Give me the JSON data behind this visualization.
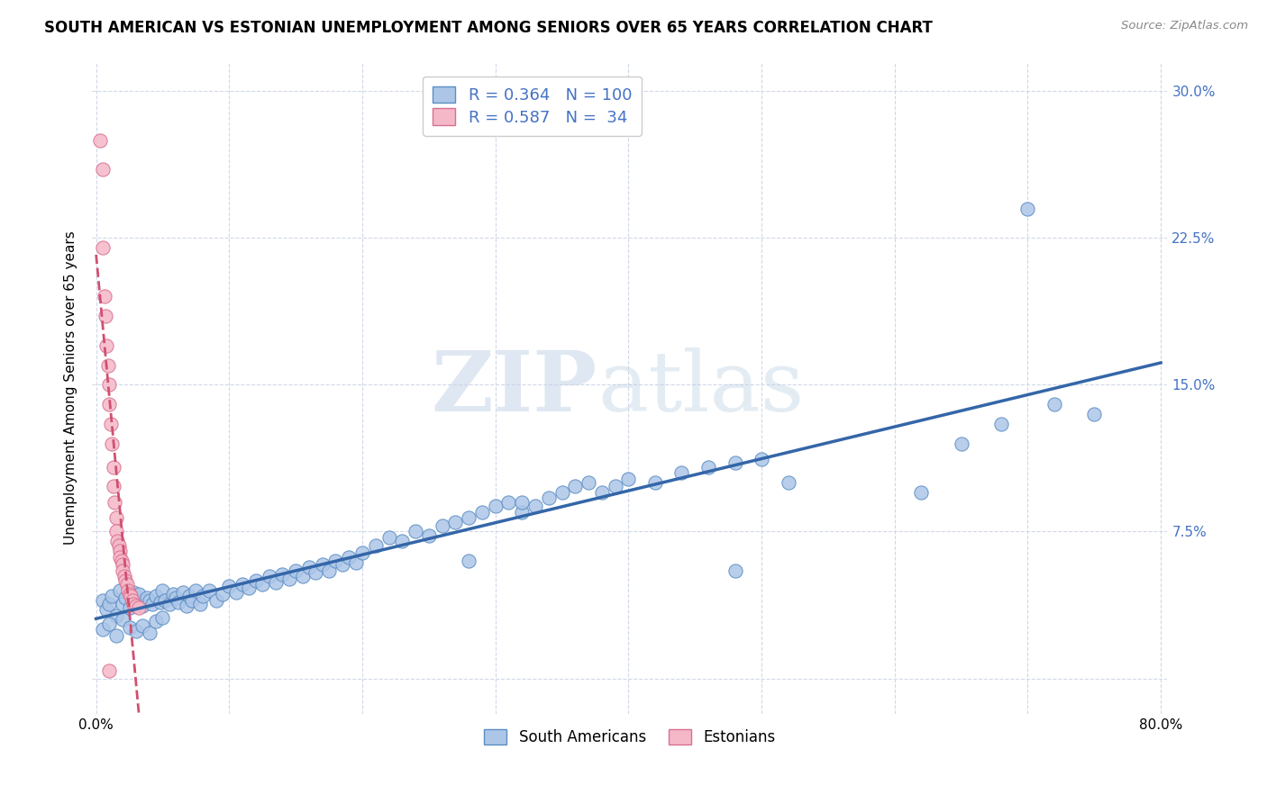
{
  "title": "SOUTH AMERICAN VS ESTONIAN UNEMPLOYMENT AMONG SENIORS OVER 65 YEARS CORRELATION CHART",
  "source": "Source: ZipAtlas.com",
  "ylabel": "Unemployment Among Seniors over 65 years",
  "xmin": 0.0,
  "xmax": 0.8,
  "ymin": -0.018,
  "ymax": 0.315,
  "blue_R": 0.364,
  "blue_N": 100,
  "pink_R": 0.587,
  "pink_N": 34,
  "blue_color": "#adc6e8",
  "blue_edge_color": "#5b8ec4",
  "blue_line_color": "#3466a8",
  "pink_color": "#f5b8c8",
  "pink_edge_color": "#d87090",
  "pink_line_color": "#d05070",
  "legend_label_blue": "South Americans",
  "legend_label_pink": "Estonians",
  "watermark_zip": "ZIP",
  "watermark_atlas": "atlas",
  "title_fontsize": 12,
  "axis_color": "#4472c4",
  "grid_color": "#d0d8e8",
  "bg_color": "#ffffff",
  "blue_scatter_x": [
    0.005,
    0.008,
    0.01,
    0.012,
    0.015,
    0.018,
    0.02,
    0.022,
    0.025,
    0.028,
    0.03,
    0.032,
    0.035,
    0.038,
    0.04,
    0.042,
    0.045,
    0.048,
    0.05,
    0.052,
    0.055,
    0.058,
    0.06,
    0.062,
    0.065,
    0.068,
    0.07,
    0.072,
    0.075,
    0.078,
    0.08,
    0.085,
    0.09,
    0.095,
    0.1,
    0.105,
    0.11,
    0.115,
    0.12,
    0.125,
    0.13,
    0.135,
    0.14,
    0.145,
    0.15,
    0.155,
    0.16,
    0.165,
    0.17,
    0.175,
    0.18,
    0.185,
    0.19,
    0.195,
    0.2,
    0.21,
    0.22,
    0.23,
    0.24,
    0.25,
    0.26,
    0.27,
    0.28,
    0.29,
    0.3,
    0.31,
    0.32,
    0.33,
    0.34,
    0.35,
    0.36,
    0.37,
    0.38,
    0.39,
    0.4,
    0.42,
    0.44,
    0.46,
    0.48,
    0.5,
    0.005,
    0.01,
    0.015,
    0.02,
    0.025,
    0.03,
    0.035,
    0.04,
    0.045,
    0.05,
    0.28,
    0.32,
    0.48,
    0.52,
    0.62,
    0.65,
    0.68,
    0.7,
    0.72,
    0.75
  ],
  "blue_scatter_y": [
    0.04,
    0.035,
    0.038,
    0.042,
    0.032,
    0.045,
    0.038,
    0.041,
    0.036,
    0.044,
    0.039,
    0.043,
    0.037,
    0.041,
    0.04,
    0.038,
    0.042,
    0.039,
    0.045,
    0.04,
    0.038,
    0.043,
    0.041,
    0.039,
    0.044,
    0.037,
    0.042,
    0.04,
    0.045,
    0.038,
    0.042,
    0.045,
    0.04,
    0.043,
    0.047,
    0.044,
    0.048,
    0.046,
    0.05,
    0.048,
    0.052,
    0.049,
    0.053,
    0.051,
    0.055,
    0.052,
    0.057,
    0.054,
    0.058,
    0.055,
    0.06,
    0.058,
    0.062,
    0.059,
    0.064,
    0.068,
    0.072,
    0.07,
    0.075,
    0.073,
    0.078,
    0.08,
    0.082,
    0.085,
    0.088,
    0.09,
    0.085,
    0.088,
    0.092,
    0.095,
    0.098,
    0.1,
    0.095,
    0.098,
    0.102,
    0.1,
    0.105,
    0.108,
    0.11,
    0.112,
    0.025,
    0.028,
    0.022,
    0.03,
    0.026,
    0.024,
    0.027,
    0.023,
    0.029,
    0.031,
    0.06,
    0.09,
    0.055,
    0.1,
    0.095,
    0.12,
    0.13,
    0.24,
    0.14,
    0.135
  ],
  "pink_scatter_x": [
    0.003,
    0.005,
    0.005,
    0.006,
    0.007,
    0.008,
    0.009,
    0.01,
    0.01,
    0.011,
    0.012,
    0.013,
    0.013,
    0.014,
    0.015,
    0.015,
    0.016,
    0.017,
    0.018,
    0.018,
    0.019,
    0.02,
    0.02,
    0.021,
    0.022,
    0.023,
    0.024,
    0.025,
    0.026,
    0.027,
    0.028,
    0.03,
    0.032,
    0.01
  ],
  "pink_scatter_y": [
    0.275,
    0.26,
    0.22,
    0.195,
    0.185,
    0.17,
    0.16,
    0.15,
    0.14,
    0.13,
    0.12,
    0.108,
    0.098,
    0.09,
    0.082,
    0.075,
    0.07,
    0.068,
    0.065,
    0.062,
    0.06,
    0.058,
    0.055,
    0.052,
    0.05,
    0.048,
    0.045,
    0.043,
    0.042,
    0.04,
    0.038,
    0.037,
    0.036,
    0.004
  ]
}
